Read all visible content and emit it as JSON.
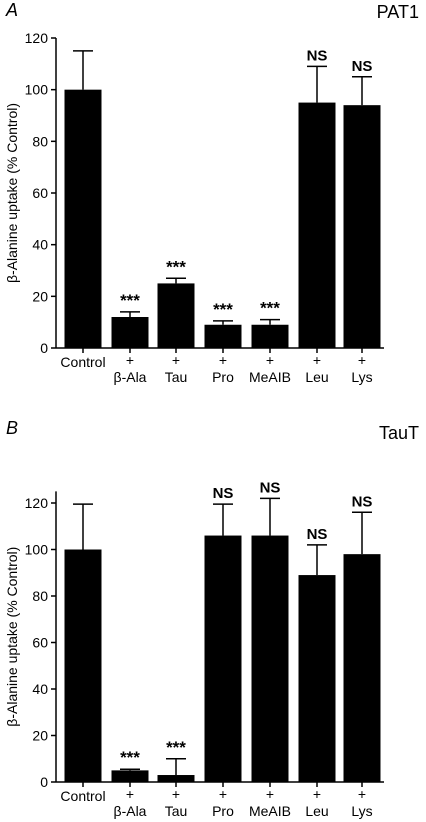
{
  "chart_data": [
    {
      "type": "bar",
      "panel_letter": "A",
      "title": "PAT1",
      "ylabel": "β-Alanine uptake (% Control)",
      "ylim": [
        0,
        120
      ],
      "yticks": [
        0,
        20,
        40,
        60,
        80,
        100,
        120
      ],
      "categories": [
        {
          "prefix": "",
          "label": "Control"
        },
        {
          "prefix": "+",
          "label": "β-Ala"
        },
        {
          "prefix": "+",
          "label": "Tau"
        },
        {
          "prefix": "+",
          "label": "Pro"
        },
        {
          "prefix": "+",
          "label": "MeAIB"
        },
        {
          "prefix": "+",
          "label": "Leu"
        },
        {
          "prefix": "+",
          "label": "Lys"
        }
      ],
      "values": [
        100,
        12,
        25,
        9,
        9,
        95,
        94
      ],
      "errors": [
        15,
        2,
        2,
        1.5,
        2,
        14,
        11
      ],
      "annotations": [
        "",
        "***",
        "***",
        "***",
        "***",
        "NS",
        "NS"
      ],
      "bar_color": "#000000"
    },
    {
      "type": "bar",
      "panel_letter": "B",
      "title": "TauT",
      "ylabel": "β-Alanine uptake (% Control)",
      "ylim": [
        0,
        125
      ],
      "yticks": [
        0,
        20,
        40,
        60,
        80,
        100,
        120
      ],
      "categories": [
        {
          "prefix": "",
          "label": "Control"
        },
        {
          "prefix": "+",
          "label": "β-Ala"
        },
        {
          "prefix": "+",
          "label": "Tau"
        },
        {
          "prefix": "+",
          "label": "Pro"
        },
        {
          "prefix": "+",
          "label": "MeAIB"
        },
        {
          "prefix": "+",
          "label": "Leu"
        },
        {
          "prefix": "+",
          "label": "Lys"
        }
      ],
      "values": [
        100,
        5,
        3,
        106,
        106,
        89,
        98
      ],
      "errors": [
        19.5,
        0.5,
        7,
        13.5,
        16,
        13,
        18
      ],
      "annotations": [
        "",
        "***",
        "***",
        "NS",
        "NS",
        "NS",
        "NS"
      ],
      "bar_color": "#000000"
    }
  ]
}
